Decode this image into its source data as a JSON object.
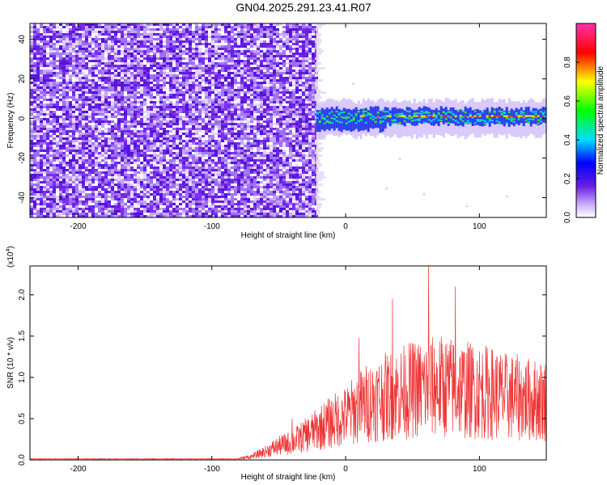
{
  "title": "GN04.2025.291.23.41.R07",
  "chart_data": [
    {
      "type": "heatmap",
      "name": "spectrogram",
      "xlabel": "Height of straight line (km)",
      "ylabel": "Frequency (Hz)",
      "xlim": [
        -236,
        150
      ],
      "ylim": [
        -50,
        48
      ],
      "xticks": [
        -200,
        -100,
        0,
        100
      ],
      "yticks": [
        -40,
        -20,
        0,
        20,
        40
      ],
      "noise_region": [
        -236,
        -22
      ],
      "signal_band": {
        "start": -22,
        "center_hz": 1,
        "half_width_hz": 4
      },
      "colorbar": {
        "label": "Normalized spectral amplitude",
        "range": [
          0.0,
          1.0
        ],
        "ticks": [
          "0.0",
          "0.2",
          "0.4",
          "0.6",
          "0.8"
        ],
        "tick_values": [
          0.0,
          0.2,
          0.4,
          0.6,
          0.8
        ]
      }
    },
    {
      "type": "line",
      "name": "snr",
      "xlabel": "Height of straight line (km)",
      "ylabel": "SNR (10 * v/v)",
      "scale_note": "(x10",
      "scale_exp": "4",
      "scale_close": ")",
      "xlim": [
        -236,
        150
      ],
      "ylim": [
        0,
        2.35
      ],
      "xticks": [
        -200,
        -100,
        0,
        100
      ],
      "yticks": [
        "0.0",
        "0.5",
        "1.0",
        "1.5",
        "2.0"
      ],
      "ytick_values": [
        0.0,
        0.5,
        1.0,
        1.5,
        2.0
      ],
      "series": [
        {
          "name": "SNR",
          "color": "#ee3333",
          "envelope_x": [
            -236,
            -80,
            -70,
            -60,
            -50,
            -40,
            -30,
            -20,
            -10,
            0,
            10,
            20,
            30,
            40,
            50,
            60,
            70,
            80,
            90,
            100,
            110,
            120,
            130,
            140,
            150
          ],
          "envelope_y": [
            0.01,
            0.02,
            0.05,
            0.12,
            0.2,
            0.25,
            0.35,
            0.45,
            0.55,
            0.62,
            0.75,
            0.85,
            0.9,
            0.95,
            1.0,
            1.02,
            1.05,
            1.03,
            1.0,
            0.98,
            0.95,
            0.9,
            0.88,
            0.85,
            0.85
          ],
          "peaks": [
            [
              62,
              2.35
            ],
            [
              82,
              2.1
            ],
            [
              35,
              1.95
            ],
            [
              10,
              1.48
            ],
            [
              -40,
              0.5
            ]
          ]
        }
      ]
    }
  ],
  "colors": {
    "signal": "#ee3333",
    "noise": "#6a1fe0",
    "axis": "#000000"
  }
}
